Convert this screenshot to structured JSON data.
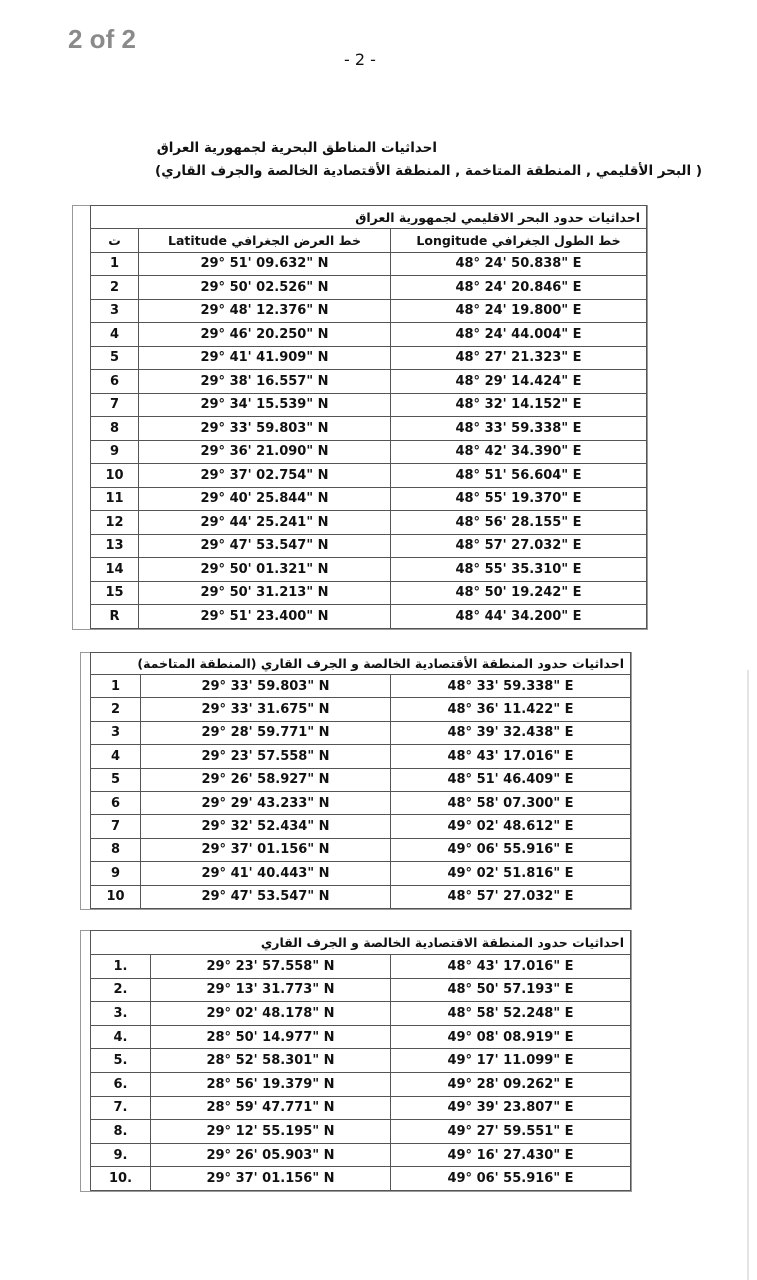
{
  "page_label": "2 of 2",
  "page_number": "- 2 -",
  "heading": {
    "line1": "احداثيات المناطق البحرية لجمهورية العراق",
    "line2": "( البحر الأقليمي , المنطقة المتاخمة , المنطقة الأقتصادية الخالصة والجرف القاري)"
  },
  "tables": [
    {
      "title": "احداثيات حدود البحر الاقليمي لجمهورية العراق",
      "header": [
        "ت",
        "خط العرض الجغرافي Latitude",
        "خط الطول الجغرافي Longitude"
      ],
      "rows": [
        [
          "1",
          "29° 51' 09.632\" N",
          "48° 24' 50.838\" E"
        ],
        [
          "2",
          "29° 50' 02.526\" N",
          "48° 24' 20.846\" E"
        ],
        [
          "3",
          "29° 48' 12.376\" N",
          "48° 24' 19.800\" E"
        ],
        [
          "4",
          "29° 46' 20.250\" N",
          "48° 24' 44.004\" E"
        ],
        [
          "5",
          "29° 41' 41.909\" N",
          "48° 27' 21.323\" E"
        ],
        [
          "6",
          "29° 38' 16.557\" N",
          "48° 29' 14.424\" E"
        ],
        [
          "7",
          "29° 34' 15.539\" N",
          "48° 32' 14.152\" E"
        ],
        [
          "8",
          "29° 33' 59.803\" N",
          "48° 33' 59.338\" E"
        ],
        [
          "9",
          "29° 36' 21.090\" N",
          "48° 42' 34.390\" E"
        ],
        [
          "10",
          "29° 37' 02.754\" N",
          "48° 51' 56.604\" E"
        ],
        [
          "11",
          "29° 40' 25.844\" N",
          "48° 55' 19.370\" E"
        ],
        [
          "12",
          "29° 44' 25.241\" N",
          "48° 56' 28.155\" E"
        ],
        [
          "13",
          "29° 47' 53.547\" N",
          "48° 57' 27.032\" E"
        ],
        [
          "14",
          "29° 50' 01.321\" N",
          "48° 55' 35.310\" E"
        ],
        [
          "15",
          "29° 50' 31.213\" N",
          "48° 50' 19.242\" E"
        ],
        [
          "R",
          "29° 51' 23.400\" N",
          "48° 44' 34.200\" E"
        ]
      ]
    },
    {
      "title": "احداثيات حدود المنطقة الأقتصادية الخالصة و الجرف القاري (المنطقة المتاخمة)",
      "rows": [
        [
          "1",
          "29° 33' 59.803\" N",
          "48° 33' 59.338\" E"
        ],
        [
          "2",
          "29° 33' 31.675\" N",
          "48° 36' 11.422\" E"
        ],
        [
          "3",
          "29° 28' 59.771\" N",
          "48° 39' 32.438\" E"
        ],
        [
          "4",
          "29° 23' 57.558\" N",
          "48° 43' 17.016\" E"
        ],
        [
          "5",
          "29° 26' 58.927\" N",
          "48° 51' 46.409\" E"
        ],
        [
          "6",
          "29° 29' 43.233\" N",
          "48° 58' 07.300\" E"
        ],
        [
          "7",
          "29° 32' 52.434\" N",
          "49° 02' 48.612\" E"
        ],
        [
          "8",
          "29° 37' 01.156\" N",
          "49° 06' 55.916\" E"
        ],
        [
          "9",
          "29° 41' 40.443\" N",
          "49° 02' 51.816\" E"
        ],
        [
          "10",
          "29° 47' 53.547\" N",
          "48° 57' 27.032\" E"
        ]
      ]
    },
    {
      "title": "احداثيات حدود المنطقة الاقتصادية الخالصة و الجرف القاري",
      "rows": [
        [
          "1.",
          "29° 23' 57.558\" N",
          "48° 43' 17.016\" E"
        ],
        [
          "2.",
          "29° 13' 31.773\" N",
          "48° 50' 57.193\" E"
        ],
        [
          "3.",
          "29° 02' 48.178\" N",
          "48° 58' 52.248\" E"
        ],
        [
          "4.",
          "28° 50' 14.977\" N",
          "49° 08' 08.919\" E"
        ],
        [
          "5.",
          "28° 52' 58.301\" N",
          "49° 17' 11.099\" E"
        ],
        [
          "6.",
          "28° 56' 19.379\" N",
          "49° 28' 09.262\" E"
        ],
        [
          "7.",
          "28° 59' 47.771\" N",
          "49° 39' 23.807\" E"
        ],
        [
          "8.",
          "29° 12' 55.195\" N",
          "49° 27' 59.551\" E"
        ],
        [
          "9.",
          "29° 26' 05.903\" N",
          "49° 16' 27.430\" E"
        ],
        [
          "10.",
          "29° 37' 01.156\" N",
          "49° 06' 55.916\" E"
        ]
      ]
    }
  ]
}
